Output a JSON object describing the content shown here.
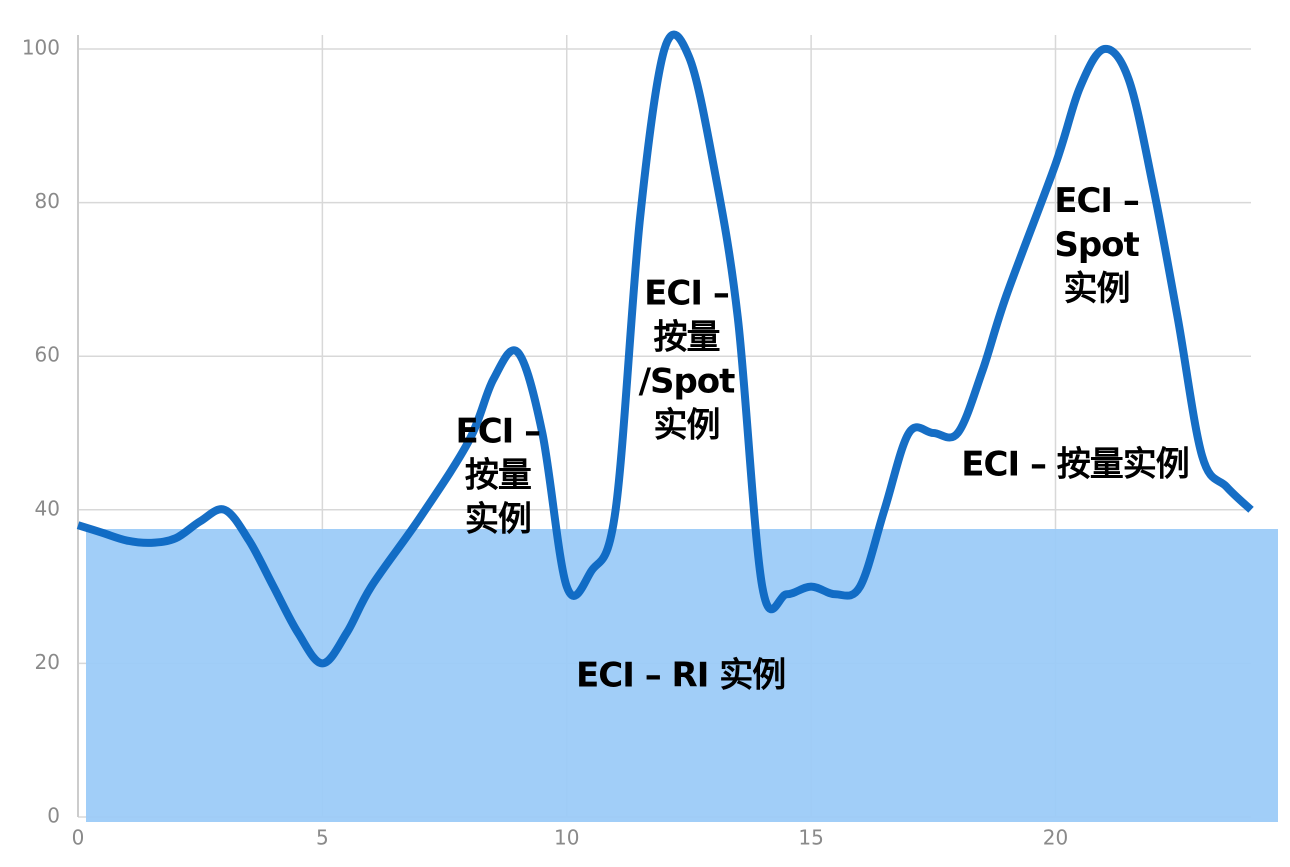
{
  "chart_data": {
    "type": "line",
    "x": [
      0,
      0.5,
      1,
      1.5,
      2,
      2.5,
      3,
      3.5,
      4,
      4.5,
      5,
      5.5,
      6,
      7,
      8,
      8.5,
      9,
      9.5,
      10,
      10.5,
      11,
      11.5,
      12,
      12.5,
      13,
      13.5,
      14,
      14.5,
      15,
      15.5,
      16,
      16.5,
      17,
      17.5,
      18,
      18.5,
      19,
      20,
      20.5,
      21,
      21.5,
      22,
      22.5,
      23,
      23.5,
      24
    ],
    "series": [
      {
        "color": "#0a66c2",
        "values": [
          38,
          37,
          36,
          35.7,
          36.3,
          38.5,
          40,
          36,
          30,
          24,
          20,
          24,
          30,
          39,
          49,
          57,
          60.5,
          50,
          30,
          32,
          40,
          78,
          100,
          99,
          85,
          65,
          30,
          29,
          30,
          29,
          30,
          40,
          50,
          50,
          50,
          58,
          68,
          85,
          95,
          100,
          96,
          82,
          65,
          47,
          43,
          40
        ]
      }
    ],
    "baseline": {
      "value": 37.5,
      "color": "#9ccbf8"
    },
    "xlim": [
      0,
      24
    ],
    "ylim": [
      0,
      100
    ],
    "xticks": [
      0,
      5,
      10,
      15,
      20
    ],
    "yticks": [
      0,
      20,
      40,
      60,
      80,
      100
    ],
    "grid": true,
    "annotations": [
      {
        "lines": [
          "ECI –",
          "按量",
          "实例"
        ],
        "x": 8.59,
        "y": 50
      },
      {
        "lines": [
          "ECI –",
          "按量",
          "/Spot",
          "实例"
        ],
        "x": 12.45,
        "y": 68
      },
      {
        "lines": [
          "ECI –",
          "Spot",
          "实例"
        ],
        "x": 20.84,
        "y": 80
      },
      {
        "lines": [
          "ECI – 按量实例"
        ],
        "x": 20.4,
        "y": 45.7
      },
      {
        "lines": [
          "ECI – RI 实例"
        ],
        "x": 12.33,
        "y": 18.2
      }
    ]
  }
}
